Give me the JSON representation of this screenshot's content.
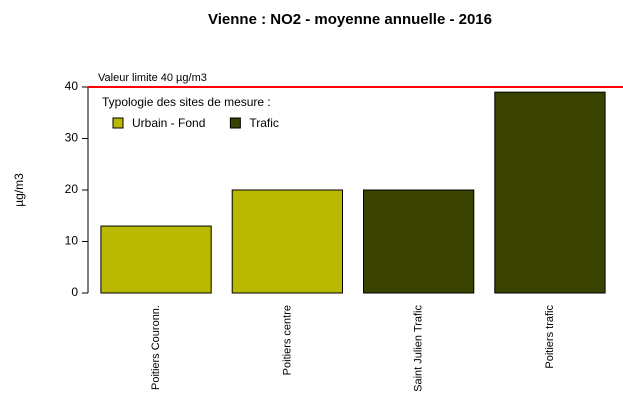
{
  "chart_data": {
    "type": "bar",
    "title": "Vienne : NO2 - moyenne annuelle - 2016",
    "y_label": "µg/m3",
    "categories": [
      "Poitiers Couronn.",
      "Poitiers centre",
      "Saint Julien Trafic",
      "Poitiers trafic"
    ],
    "values": [
      13,
      20,
      20,
      39
    ],
    "colors": [
      "#b9b900",
      "#b9b900",
      "#3a4200",
      "#3a4200"
    ],
    "ylim": [
      0,
      40
    ],
    "yticks": [
      0,
      10,
      20,
      30,
      40
    ],
    "reference_line": {
      "value": 40,
      "label": "Valeur limite 40 µg/m3",
      "color": "#ff0000"
    },
    "legend": {
      "title": "Typologie des sites de mesure :",
      "entries": [
        {
          "name": "Urbain - Fond",
          "color": "#b9b900"
        },
        {
          "name": "Trafic",
          "color": "#3a4200"
        }
      ]
    }
  }
}
